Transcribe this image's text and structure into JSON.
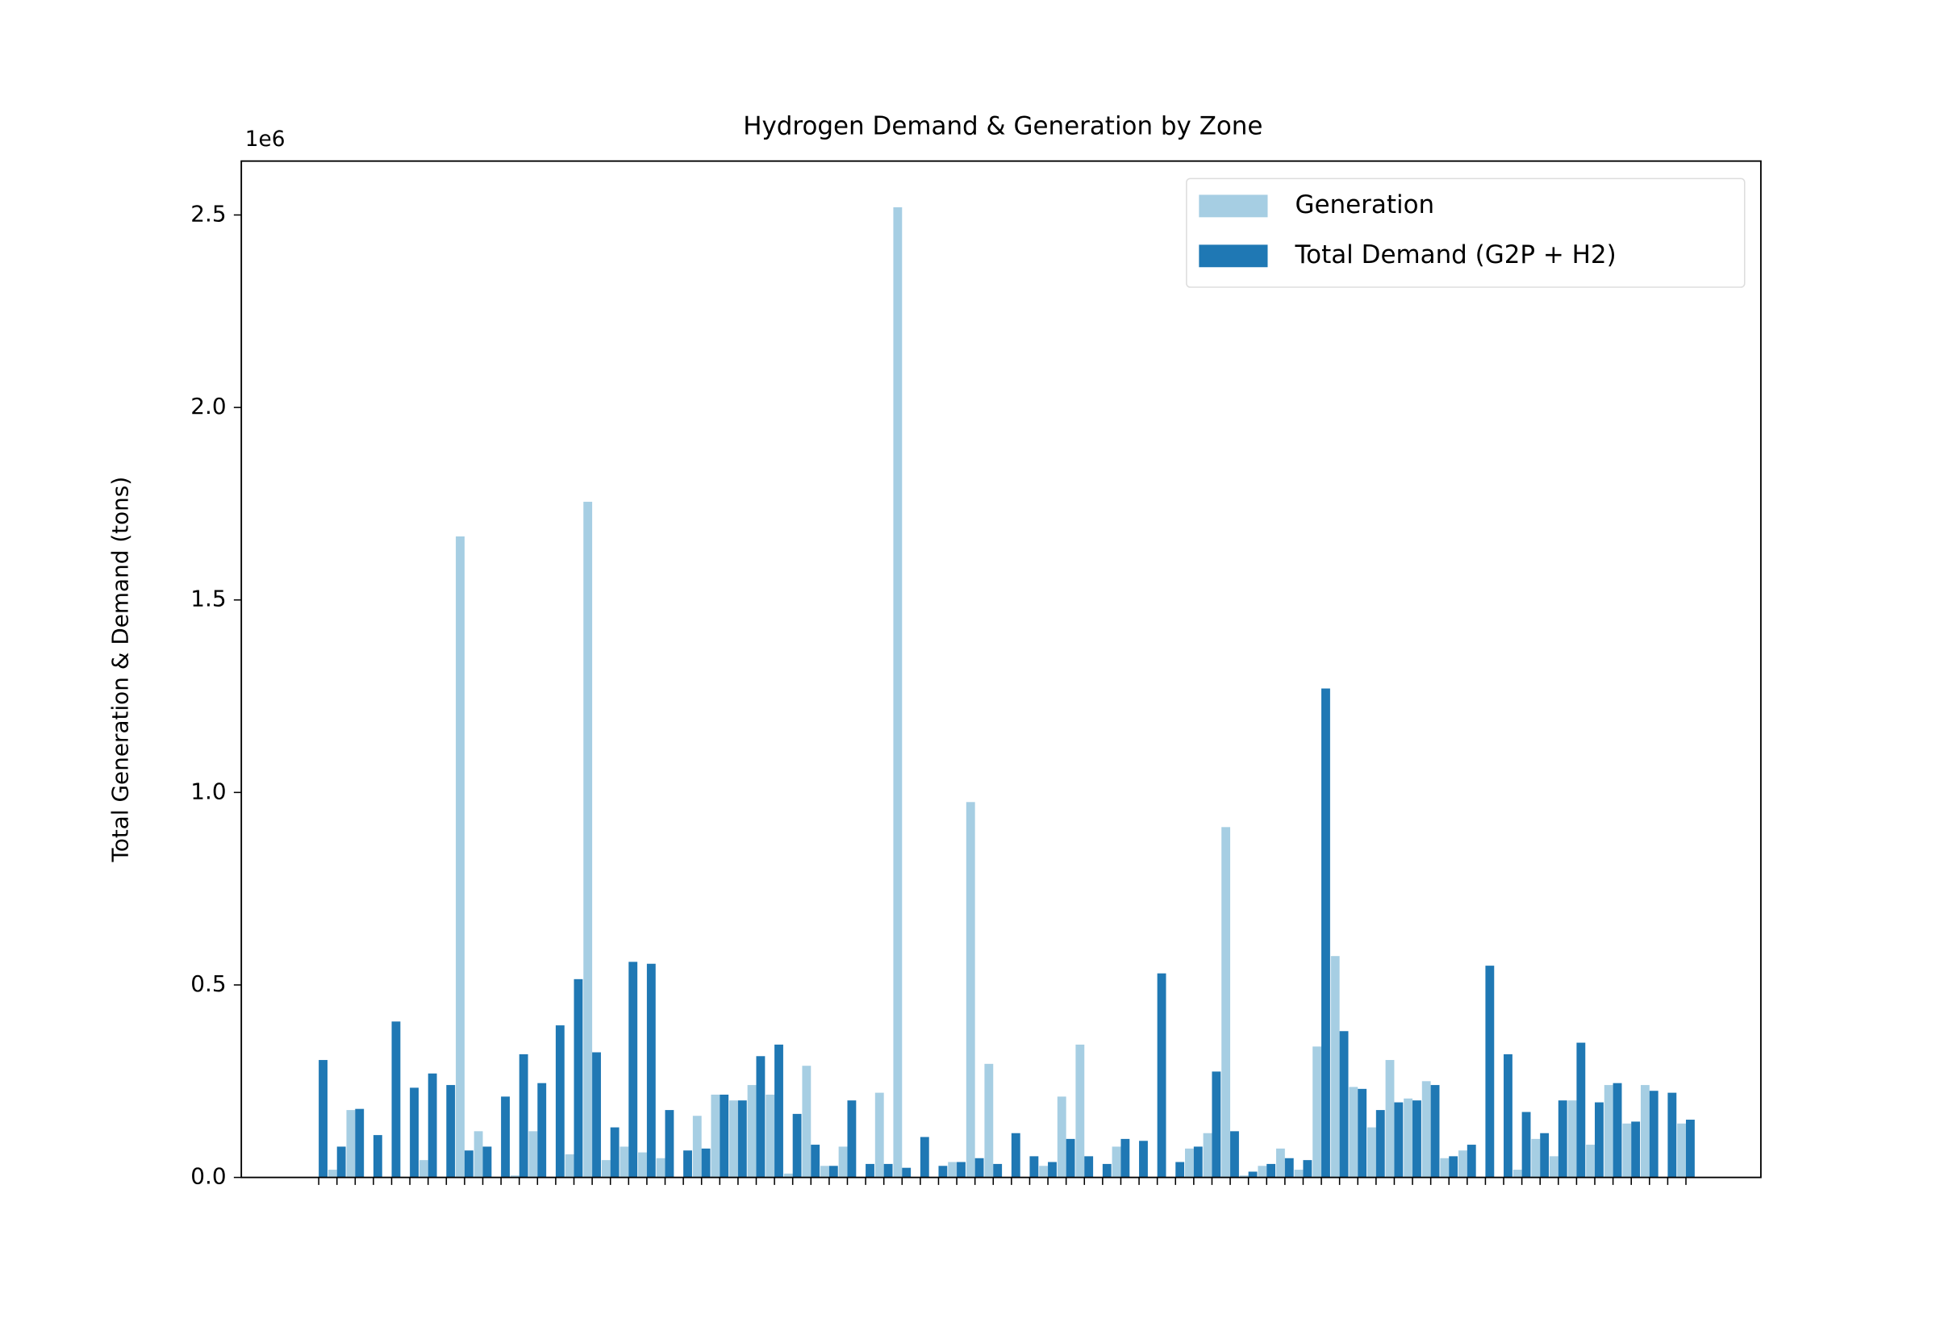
{
  "chart_data": {
    "type": "bar",
    "title": "Hydrogen Demand & Generation by Zone",
    "y_label": "Total Generation & Demand (tons)",
    "y_offset_label": "1e6",
    "categories": [
      null,
      null,
      null,
      null,
      null,
      null,
      null,
      null,
      null,
      null,
      null,
      null,
      null,
      null,
      null,
      null,
      null,
      null,
      null,
      null,
      null,
      null,
      null,
      null,
      null,
      null,
      null,
      null,
      null,
      null,
      null,
      null,
      null,
      null,
      null,
      null,
      null,
      null,
      null,
      null,
      null,
      null,
      null,
      null,
      null,
      null,
      null,
      null,
      null,
      null,
      null,
      null,
      null,
      null,
      null,
      null,
      null,
      null,
      null,
      null,
      null,
      null,
      null,
      null,
      null,
      null,
      null,
      null,
      null,
      null,
      null,
      null,
      null,
      null,
      null,
      null
    ],
    "series": [
      {
        "name": "Generation",
        "color": "#a6cee3",
        "values": [
          0,
          20000,
          175000,
          0,
          0,
          0,
          45000,
          0,
          1665000,
          120000,
          0,
          5000,
          120000,
          0,
          60000,
          1755000,
          45000,
          80000,
          65000,
          50000,
          0,
          160000,
          215000,
          200000,
          240000,
          215000,
          10000,
          290000,
          30000,
          80000,
          0,
          220000,
          2520000,
          0,
          0,
          40000,
          975000,
          295000,
          0,
          0,
          30000,
          210000,
          345000,
          0,
          80000,
          0,
          0,
          0,
          75000,
          115000,
          910000,
          5000,
          30000,
          75000,
          20000,
          340000,
          575000,
          235000,
          130000,
          305000,
          205000,
          250000,
          50000,
          70000,
          0,
          0,
          20000,
          100000,
          55000,
          200000,
          85000,
          240000,
          140000,
          240000,
          0,
          140000
        ]
      },
      {
        "name": "Total Demand (G2P + H2)",
        "color": "#1f78b4",
        "values": [
          305000,
          80000,
          178000,
          110000,
          405000,
          233000,
          270000,
          240000,
          70000,
          80000,
          210000,
          320000,
          245000,
          395000,
          515000,
          325000,
          130000,
          560000,
          555000,
          175000,
          70000,
          75000,
          215000,
          200000,
          315000,
          345000,
          165000,
          85000,
          30000,
          200000,
          35000,
          35000,
          25000,
          105000,
          30000,
          40000,
          50000,
          35000,
          115000,
          55000,
          40000,
          100000,
          55000,
          35000,
          100000,
          95000,
          530000,
          40000,
          80000,
          275000,
          120000,
          15000,
          35000,
          50000,
          45000,
          1270000,
          380000,
          230000,
          175000,
          195000,
          200000,
          240000,
          55000,
          85000,
          550000,
          320000,
          170000,
          115000,
          200000,
          350000,
          195000,
          245000,
          145000,
          225000,
          220000,
          150000
        ]
      }
    ],
    "ylim": [
      0,
      2640000
    ],
    "yticks": [
      {
        "value": 0,
        "label": "0.0"
      },
      {
        "value": 500000,
        "label": "0.5"
      },
      {
        "value": 1000000,
        "label": "1.0"
      },
      {
        "value": 1500000,
        "label": "1.5"
      },
      {
        "value": 2000000,
        "label": "2.0"
      },
      {
        "value": 2500000,
        "label": "2.5"
      }
    ],
    "legend": "upper right"
  }
}
